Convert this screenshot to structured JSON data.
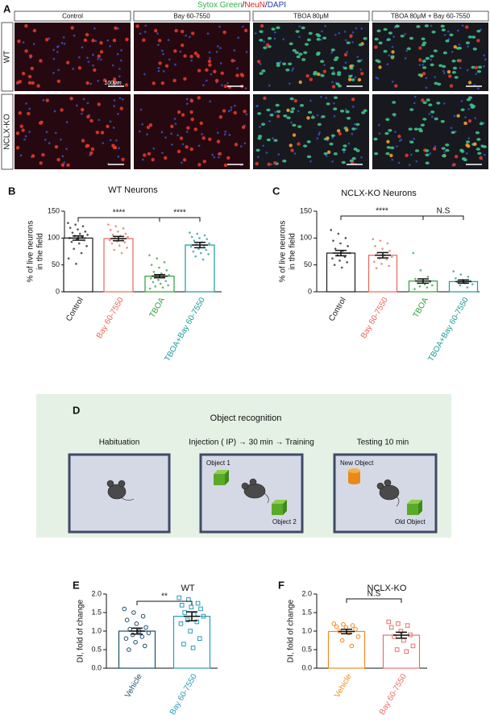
{
  "panel_a": {
    "label": "A",
    "legend": [
      "Sytox Green",
      "/",
      "NeuN",
      "/",
      "DAPI"
    ],
    "columns": [
      "Control",
      "Bay 60-7550",
      "TBOA 80μM",
      "TBOA 80μM + Bay 60-7550"
    ],
    "rows": [
      "WT",
      "NCLX-KO"
    ],
    "scale_bar": "100μm"
  },
  "chart_data": [
    {
      "type": "bar",
      "panel": "B",
      "title": "WT Neurons",
      "ylabel": [
        "% of live neurons",
        "in the field"
      ],
      "categories": [
        "Control",
        "Bay 60-7550",
        "TBOA",
        "TBOA+Bay 60-7550"
      ],
      "colors": [
        "#1a1a1a",
        "#e8675a",
        "#2e9e3c",
        "#1a9a9a"
      ],
      "markers": [
        "dot",
        "dot",
        "dot",
        "dot"
      ],
      "values": [
        100,
        99,
        29,
        87
      ],
      "errors": [
        4,
        4,
        3,
        5
      ],
      "points": [
        [
          128,
          125,
          122,
          119,
          116,
          112,
          110,
          108,
          106,
          104,
          102,
          100,
          98,
          96,
          93,
          90,
          85,
          80,
          72,
          62,
          52
        ],
        [
          125,
          122,
          118,
          115,
          112,
          108,
          106,
          104,
          102,
          100,
          98,
          96,
          94,
          92,
          90,
          86,
          82,
          78,
          72
        ],
        [
          68,
          62,
          55,
          50,
          45,
          40,
          37,
          34,
          31,
          29,
          27,
          25,
          22,
          20,
          18,
          15,
          12,
          10,
          8,
          6
        ],
        [
          110,
          108,
          105,
          102,
          100,
          98,
          95,
          92,
          90,
          88,
          86,
          84,
          80,
          78,
          75,
          72,
          70,
          66,
          60
        ]
      ],
      "ylim": [
        0,
        150
      ],
      "yticks": [
        0,
        50,
        100,
        150
      ],
      "significance": [
        {
          "label": "****",
          "between": [
            "Control",
            "TBOA"
          ]
        },
        {
          "label": "****",
          "between": [
            "TBOA",
            "TBOA+Bay 60-7550"
          ]
        }
      ]
    },
    {
      "type": "bar",
      "panel": "C",
      "title": "NCLX-KO Neurons",
      "ylabel": [
        "% of live neurons",
        "in the field"
      ],
      "categories": [
        "Control",
        "Bay 60-7550",
        "TBOA",
        "TBOA+Bay 60-7550"
      ],
      "colors": [
        "#1a1a1a",
        "#e8675a",
        "#2e9e3c",
        "#1a9a9a"
      ],
      "markers": [
        "dot",
        "dot",
        "dot",
        "dot"
      ],
      "values": [
        72,
        68,
        20,
        19
      ],
      "errors": [
        5,
        5,
        4,
        3
      ],
      "points": [
        [
          115,
          108,
          100,
          95,
          90,
          85,
          80,
          76,
          72,
          68,
          65,
          62,
          58,
          55,
          50,
          45
        ],
        [
          98,
          95,
          90,
          85,
          80,
          76,
          72,
          68,
          65,
          62,
          60,
          56,
          52,
          48,
          44
        ],
        [
          72,
          40,
          28,
          24,
          20,
          18,
          16,
          14,
          12,
          10,
          8,
          5
        ],
        [
          38,
          32,
          28,
          25,
          22,
          20,
          18,
          16,
          14,
          12,
          8
        ]
      ],
      "ylim": [
        0,
        150
      ],
      "yticks": [
        0,
        50,
        100,
        150
      ],
      "significance": [
        {
          "label": "****",
          "between": [
            "Control",
            "TBOA"
          ]
        },
        {
          "label": "N.S",
          "between": [
            "TBOA",
            "TBOA+Bay 60-7550"
          ]
        }
      ]
    },
    {
      "type": "bar",
      "panel": "E",
      "title": "WT",
      "ylabel": [
        "DI, fold of change"
      ],
      "categories": [
        "Vehicle",
        "Bay 60-7550"
      ],
      "colors": [
        "#1d4f6e",
        "#2a9ab8"
      ],
      "markers": [
        "circle",
        "square"
      ],
      "values": [
        1.0,
        1.4
      ],
      "errors": [
        0.08,
        0.12
      ],
      "points": [
        [
          1.6,
          1.5,
          1.4,
          1.3,
          1.2,
          1.1,
          1.05,
          1.0,
          0.95,
          0.9,
          0.85,
          0.8,
          0.7,
          0.6,
          0.5
        ],
        [
          1.9,
          1.85,
          1.75,
          1.7,
          1.65,
          1.6,
          1.5,
          1.45,
          1.4,
          1.3,
          1.25,
          1.2,
          1.0,
          0.8,
          0.65,
          0.55
        ]
      ],
      "ylim": [
        0,
        2.0
      ],
      "yticks": [
        {
          "value": 0,
          "label": "0.0"
        },
        0.5,
        {
          "value": 1,
          "label": "1.0"
        },
        1.5,
        {
          "value": 2,
          "label": "2.0"
        }
      ],
      "significance": [
        {
          "label": "**",
          "between": [
            "Vehicle",
            "Bay 60-7550"
          ]
        }
      ]
    },
    {
      "type": "bar",
      "panel": "F",
      "title": "NCLX-KO",
      "ylabel": [
        "DI, fold of change"
      ],
      "categories": [
        "Vehicle",
        "Bay 60-7550"
      ],
      "colors": [
        "#f08a24",
        "#e8706a"
      ],
      "markers": [
        "circle",
        "square"
      ],
      "values": [
        0.99,
        0.89
      ],
      "errors": [
        0.06,
        0.08
      ],
      "points": [
        [
          1.2,
          1.18,
          1.15,
          1.12,
          1.1,
          1.05,
          1.0,
          0.95,
          0.85,
          0.75,
          0.6
        ],
        [
          1.25,
          1.2,
          1.15,
          1.1,
          1.0,
          0.9,
          0.85,
          0.75,
          0.6,
          0.5,
          0.45
        ]
      ],
      "ylim": [
        0,
        2.0
      ],
      "yticks": [
        {
          "value": 0,
          "label": "0.0"
        },
        0.5,
        {
          "value": 1,
          "label": "1.0"
        },
        1.5,
        {
          "value": 2,
          "label": "2.0"
        }
      ],
      "significance": [
        {
          "label": "N.S",
          "between": [
            "Vehicle",
            "Bay 60-7550"
          ]
        }
      ]
    }
  ],
  "panel_d": {
    "label": "D",
    "title": "Object recognition",
    "steps": [
      "Habituation",
      "Injection ( IP) → 30 min → Training",
      "Testing 10 min"
    ],
    "objects": [
      "Object 1",
      "Object 2",
      "New Object",
      "Old Object"
    ]
  }
}
